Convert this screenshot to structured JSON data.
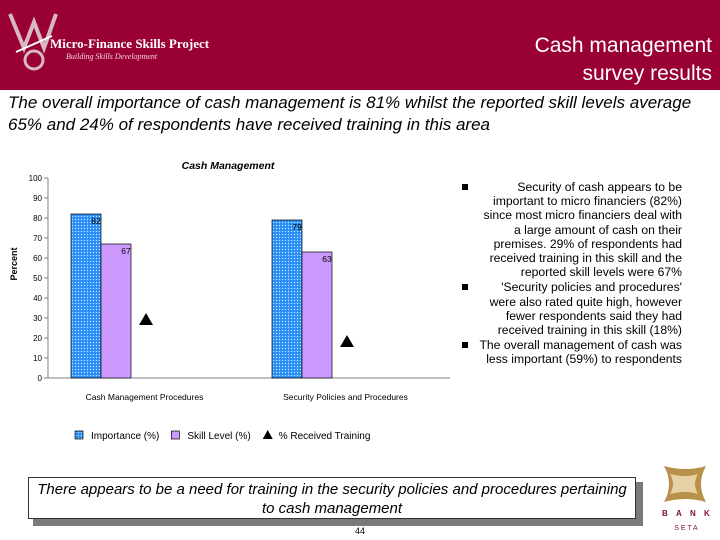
{
  "header": {
    "logo_text": "Micro-Finance Skills Project",
    "logo_subtext": "Building Skills Development",
    "title_line1": "Cash management",
    "title_line2": "survey results",
    "band_color": "#990033"
  },
  "subtitle": "The overall importance of cash management is 81% whilst the reported skill levels average 65% and 24% of respondents have received training in this area",
  "chart_data": {
    "type": "bar",
    "title": "Cash Management",
    "ylabel": "Percent",
    "xlabel": "",
    "ylim": [
      0,
      100
    ],
    "yticks": [
      0,
      10,
      20,
      30,
      40,
      50,
      60,
      70,
      80,
      90,
      100
    ],
    "categories": [
      "Cash Management Procedures",
      "Security Policies and Procedures"
    ],
    "series": [
      {
        "name": "Importance (%)",
        "values": [
          82,
          79
        ],
        "color": "#3399ff",
        "pattern": "dotted",
        "labeled": true
      },
      {
        "name": "Skill Level (%)",
        "values": [
          67,
          63
        ],
        "color": "#cc99ff",
        "pattern": "solid",
        "labeled": true
      },
      {
        "name": "% Received Training",
        "values": [
          29,
          18
        ],
        "color": "#000000",
        "marker": "triangle",
        "labeled": false
      }
    ],
    "legend_position": "bottom",
    "grid": false
  },
  "bullets": [
    "Security of cash appears to be important to micro financiers (82%) since most micro financiers deal with a large amount of cash on their premises. 29% of respondents had received training in this skill and the reported skill levels were 67%",
    "'Security policies and procedures' were also rated quite high, however fewer respondents said they had received training in this skill (18%)",
    "The overall management of cash was less important (59%) to respondents"
  ],
  "callout": "There appears to be a need for training in the security policies and procedures pertaining to cash management",
  "footer": {
    "page_number": "44",
    "bank_logo_letters": [
      "B",
      "A",
      "N",
      "K"
    ],
    "bank_logo_sub": "S E T A"
  }
}
